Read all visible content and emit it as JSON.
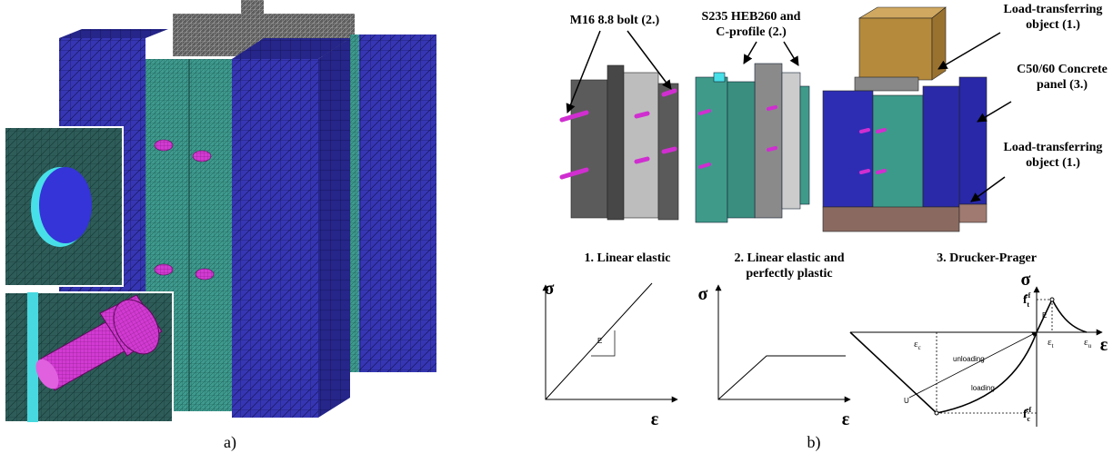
{
  "panel_a": {
    "label": "a)"
  },
  "panel_b": {
    "label": "b)",
    "callouts": [
      [
        "M16 8.8 bolt (2.)"
      ],
      [
        "S235 HEB260 and",
        "C-profile (2.)"
      ],
      [
        "Load-transferring",
        "object (1.)"
      ],
      [
        "C50/60 Concrete",
        "panel (3.)"
      ],
      [
        "Load-transferring",
        "object (1.)"
      ]
    ],
    "models": [
      {
        "title": [
          "1. Linear elastic"
        ],
        "y_axis": "σ",
        "x_axis": "ε",
        "slope_label": "E"
      },
      {
        "title": [
          "2. Linear elastic and",
          "perfectly plastic"
        ],
        "y_axis": "σ",
        "x_axis": "ε"
      },
      {
        "title": [
          "3. Drucker-Prager"
        ],
        "y_axis": "σ",
        "x_axis": "ε",
        "eps_c": {
          "base": "ε",
          "sub": "c"
        },
        "eps_t": {
          "base": "ε",
          "sub": "t"
        },
        "eps_u": {
          "base": "ε",
          "sub": "u"
        },
        "f_t": {
          "base": "f",
          "sub": "t",
          "sup": "ef"
        },
        "f_c": {
          "base": "f",
          "sub": "c",
          "sup": "ef"
        },
        "modulus": "E",
        "unloading": "unloading",
        "loading": "loading",
        "point": "U"
      }
    ]
  }
}
